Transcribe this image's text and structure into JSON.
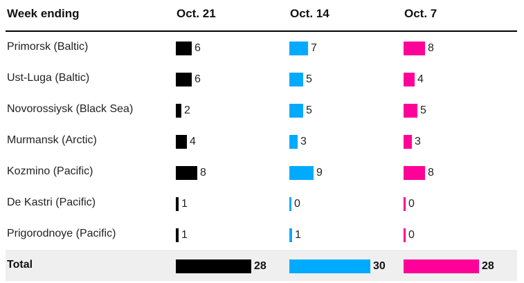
{
  "header": {
    "label_col": "Week ending",
    "columns": [
      "Oct. 21",
      "Oct. 14",
      "Oct. 7"
    ]
  },
  "colors": {
    "Oct. 21": "#000000",
    "Oct. 14": "#00aaff",
    "Oct. 7": "#ff0099",
    "total_row_bg": "#efefef"
  },
  "chart_data": {
    "type": "bar",
    "categories": [
      "Primorsk (Baltic)",
      "Ust-Luga (Baltic)",
      "Novorossiysk (Black Sea)",
      "Murmansk (Arctic)",
      "Kozmino (Pacific)",
      "De Kastri (Pacific)",
      "Prigorodnoye (Pacific)",
      "Total"
    ],
    "series": [
      {
        "name": "Oct. 21",
        "values": [
          6,
          6,
          2,
          4,
          8,
          1,
          1,
          28
        ]
      },
      {
        "name": "Oct. 14",
        "values": [
          7,
          5,
          5,
          3,
          9,
          0,
          1,
          30
        ]
      },
      {
        "name": "Oct. 7",
        "values": [
          8,
          4,
          5,
          3,
          8,
          0,
          0,
          28
        ]
      }
    ],
    "title": "",
    "xlabel": "",
    "ylabel": ""
  }
}
